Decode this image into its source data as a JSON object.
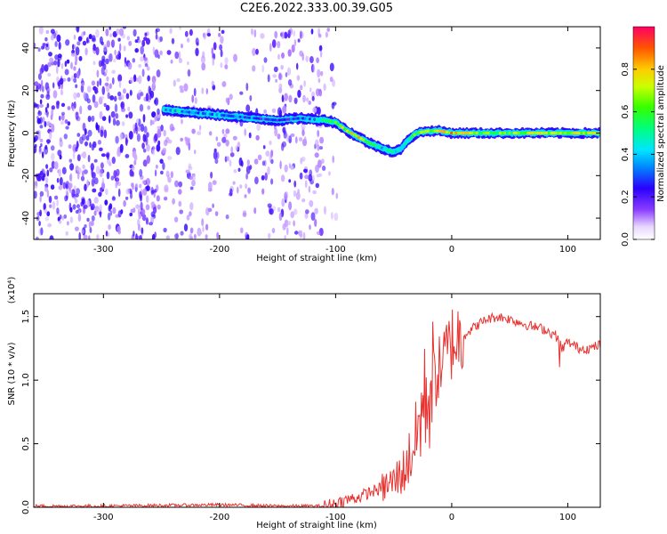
{
  "title": "C2E6.2022.333.00.39.G05",
  "colors": {
    "snr_line": "#e8322f",
    "noise": "#6a1ef0",
    "axis": "#000000"
  },
  "chart_data": [
    {
      "type": "heatmap",
      "xlabel": "Height of straight line (km)",
      "ylabel": "Frequency (Hz)",
      "xlim": [
        -360,
        128
      ],
      "ylim": [
        -50,
        50
      ],
      "xticks": [
        -300,
        -200,
        -100,
        0,
        100
      ],
      "yticks": [
        -40,
        -20,
        0,
        20,
        40
      ],
      "colorbar": {
        "label": "Normalized spectral amplitude",
        "range": [
          0,
          1
        ],
        "ticks": [
          0.0,
          0.2,
          0.4,
          0.6,
          0.8
        ]
      },
      "signal_trace": {
        "x": [
          -248,
          -230,
          -210,
          -190,
          -170,
          -150,
          -130,
          -110,
          -100,
          -90,
          -80,
          -70,
          -60,
          -50,
          -45,
          -40,
          -35,
          -30,
          -20,
          -10,
          0,
          20,
          40,
          60,
          80,
          100,
          128
        ],
        "frequency": [
          11,
          10,
          9,
          8,
          7,
          6,
          7,
          6,
          5,
          1,
          -2,
          -5,
          -7,
          -9,
          -8,
          -5,
          -2,
          0,
          1,
          1,
          0,
          0,
          0,
          0,
          0,
          0,
          0
        ],
        "amplitude": [
          0.45,
          0.4,
          0.35,
          0.3,
          0.3,
          0.25,
          0.25,
          0.45,
          0.6,
          0.7,
          0.75,
          0.6,
          0.45,
          0.4,
          0.45,
          0.5,
          0.55,
          0.6,
          0.7,
          0.75,
          0.8,
          0.65,
          0.6,
          0.65,
          0.7,
          0.75,
          0.7
        ]
      }
    },
    {
      "type": "line",
      "xlabel": "Height of straight line (km)",
      "ylabel": "SNR (10 * v/v)",
      "scale_label": "(x10⁴)",
      "xlim": [
        -360,
        128
      ],
      "ylim": [
        0,
        1.68
      ],
      "xticks": [
        -300,
        -200,
        -100,
        0,
        100
      ],
      "yticks": [
        0.0,
        0.5,
        1.0,
        1.5
      ],
      "series": [
        {
          "x": [
            -360,
            -300,
            -200,
            -150,
            -110,
            -100,
            -90,
            -80,
            -70,
            -60,
            -50,
            -40,
            -30,
            -25,
            -20,
            -15,
            -10,
            -5,
            0,
            10,
            20,
            30,
            40,
            50,
            60,
            70,
            80,
            90,
            95,
            100,
            110,
            120,
            128
          ],
          "values": [
            0.01,
            0.01,
            0.02,
            0.01,
            0.01,
            0.03,
            0.06,
            0.08,
            0.12,
            0.15,
            0.2,
            0.3,
            0.55,
            0.8,
            0.9,
            1.0,
            1.1,
            1.2,
            1.3,
            1.35,
            1.42,
            1.48,
            1.5,
            1.48,
            1.45,
            1.42,
            1.4,
            1.35,
            1.25,
            1.3,
            1.25,
            1.25,
            1.28
          ]
        }
      ]
    }
  ]
}
